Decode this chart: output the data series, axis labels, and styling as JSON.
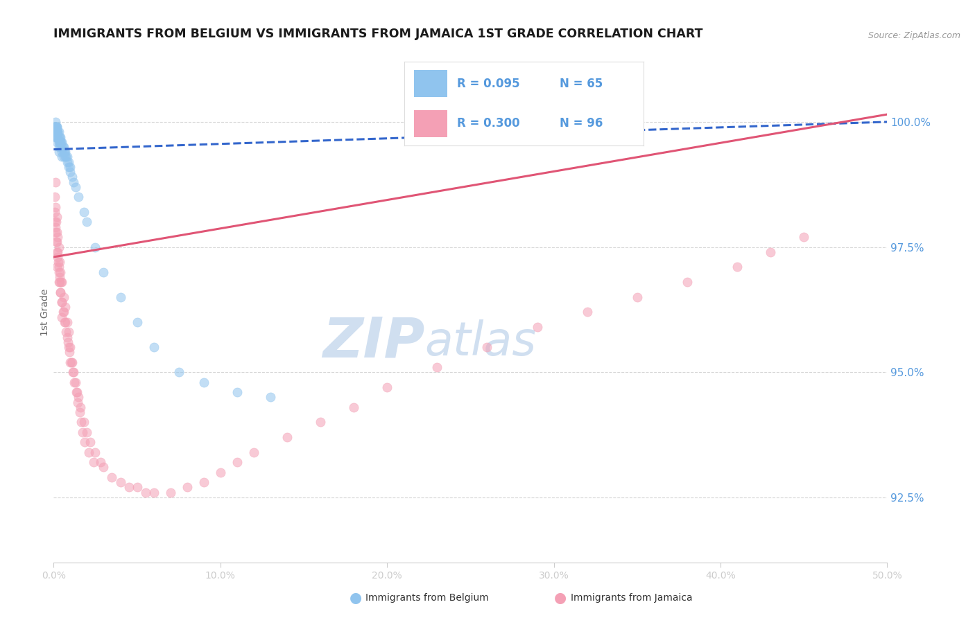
{
  "title": "IMMIGRANTS FROM BELGIUM VS IMMIGRANTS FROM JAMAICA 1ST GRADE CORRELATION CHART",
  "source": "Source: ZipAtlas.com",
  "ylabel": "1st Grade",
  "y_ticks": [
    92.5,
    95.0,
    97.5,
    100.0
  ],
  "x_min": 0.0,
  "x_max": 50.0,
  "y_min": 91.2,
  "y_max": 101.2,
  "r_belgium": 0.095,
  "n_belgium": 65,
  "r_jamaica": 0.3,
  "n_jamaica": 96,
  "color_belgium": "#90C4EE",
  "color_jamaica": "#F4A0B5",
  "color_trendline_belgium": "#3366CC",
  "color_trendline_jamaica": "#E05575",
  "color_ytick_labels": "#5599DD",
  "watermark_zip": "ZIP",
  "watermark_atlas": "atlas",
  "watermark_color": "#D0DFF0",
  "belgium_x": [
    0.05,
    0.08,
    0.1,
    0.1,
    0.1,
    0.12,
    0.15,
    0.15,
    0.15,
    0.18,
    0.2,
    0.2,
    0.2,
    0.2,
    0.22,
    0.25,
    0.25,
    0.3,
    0.3,
    0.3,
    0.3,
    0.3,
    0.35,
    0.35,
    0.4,
    0.4,
    0.4,
    0.45,
    0.5,
    0.5,
    0.5,
    0.5,
    0.55,
    0.6,
    0.6,
    0.6,
    0.65,
    0.7,
    0.7,
    0.75,
    0.8,
    0.8,
    0.9,
    0.9,
    1.0,
    1.0,
    1.1,
    1.2,
    1.3,
    1.5,
    1.8,
    2.0,
    2.5,
    3.0,
    4.0,
    5.0,
    6.0,
    7.5,
    9.0,
    11.0,
    13.0,
    0.05,
    0.08,
    0.12,
    0.18
  ],
  "belgium_y": [
    99.9,
    99.9,
    100.0,
    99.8,
    99.7,
    99.9,
    99.9,
    99.8,
    99.7,
    99.9,
    99.9,
    99.8,
    99.7,
    99.6,
    99.8,
    99.8,
    99.7,
    99.8,
    99.7,
    99.6,
    99.5,
    99.4,
    99.7,
    99.6,
    99.7,
    99.6,
    99.5,
    99.6,
    99.6,
    99.5,
    99.4,
    99.3,
    99.5,
    99.5,
    99.4,
    99.3,
    99.4,
    99.4,
    99.3,
    99.3,
    99.3,
    99.2,
    99.2,
    99.1,
    99.1,
    99.0,
    98.9,
    98.8,
    98.7,
    98.5,
    98.2,
    98.0,
    97.5,
    97.0,
    96.5,
    96.0,
    95.5,
    95.0,
    94.8,
    94.6,
    94.5,
    99.9,
    99.8,
    99.9,
    99.8
  ],
  "jamaica_x": [
    0.05,
    0.08,
    0.1,
    0.1,
    0.12,
    0.15,
    0.15,
    0.18,
    0.2,
    0.2,
    0.2,
    0.25,
    0.25,
    0.3,
    0.3,
    0.3,
    0.35,
    0.35,
    0.4,
    0.4,
    0.45,
    0.5,
    0.5,
    0.5,
    0.6,
    0.6,
    0.7,
    0.7,
    0.8,
    0.8,
    0.9,
    0.9,
    1.0,
    1.0,
    1.1,
    1.2,
    1.3,
    1.4,
    1.5,
    1.6,
    1.8,
    2.0,
    2.2,
    2.5,
    2.8,
    3.0,
    3.5,
    4.0,
    4.5,
    5.0,
    5.5,
    6.0,
    7.0,
    8.0,
    9.0,
    10.0,
    11.0,
    12.0,
    14.0,
    16.0,
    18.0,
    20.0,
    23.0,
    26.0,
    29.0,
    32.0,
    35.0,
    38.0,
    41.0,
    43.0,
    45.0,
    0.08,
    0.12,
    0.18,
    0.22,
    0.28,
    0.32,
    0.38,
    0.42,
    0.48,
    0.55,
    0.65,
    0.75,
    0.85,
    0.95,
    1.05,
    1.15,
    1.25,
    1.35,
    1.45,
    1.55,
    1.65,
    1.75,
    1.85,
    2.1,
    2.4
  ],
  "jamaica_y": [
    98.5,
    98.2,
    98.8,
    97.9,
    98.3,
    98.0,
    97.6,
    98.1,
    97.8,
    97.4,
    97.1,
    97.7,
    97.3,
    97.5,
    97.1,
    96.8,
    97.2,
    96.9,
    97.0,
    96.6,
    96.8,
    96.8,
    96.4,
    96.1,
    96.5,
    96.2,
    96.3,
    96.0,
    96.0,
    95.7,
    95.8,
    95.5,
    95.5,
    95.2,
    95.2,
    95.0,
    94.8,
    94.6,
    94.5,
    94.3,
    94.0,
    93.8,
    93.6,
    93.4,
    93.2,
    93.1,
    92.9,
    92.8,
    92.7,
    92.7,
    92.6,
    92.6,
    92.6,
    92.7,
    92.8,
    93.0,
    93.2,
    93.4,
    93.7,
    94.0,
    94.3,
    94.7,
    95.1,
    95.5,
    95.9,
    96.2,
    96.5,
    96.8,
    97.1,
    97.4,
    97.7,
    98.0,
    97.8,
    97.6,
    97.4,
    97.2,
    97.0,
    96.8,
    96.6,
    96.4,
    96.2,
    96.0,
    95.8,
    95.6,
    95.4,
    95.2,
    95.0,
    94.8,
    94.6,
    94.4,
    94.2,
    94.0,
    93.8,
    93.6,
    93.4,
    93.2
  ]
}
